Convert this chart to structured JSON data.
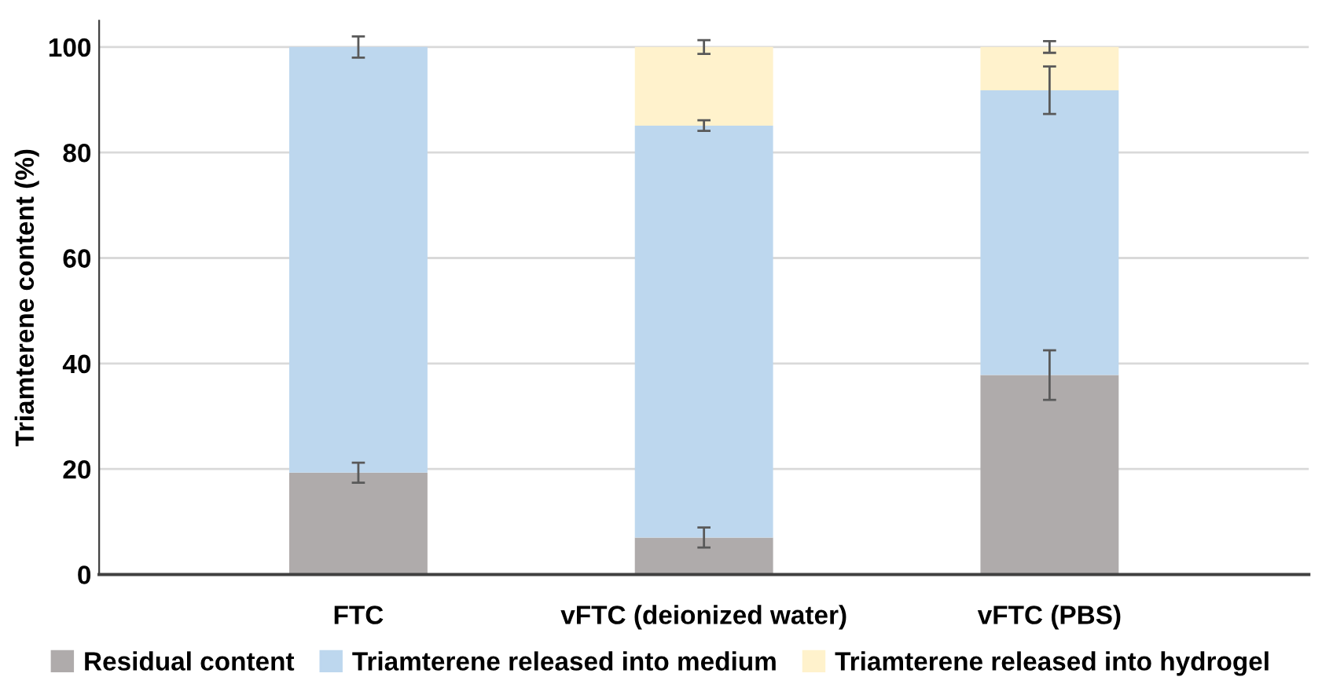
{
  "chart_data": {
    "type": "bar",
    "stacked": true,
    "ylabel": "Triamterene content (%)",
    "categories": [
      "FTC",
      "vFTC (deionized water)",
      "vFTC (PBS)"
    ],
    "series": [
      {
        "name": "Residual content",
        "color": "#afabab",
        "values": [
          19.3,
          7.0,
          37.8
        ],
        "errors": [
          1.9,
          1.9,
          4.7
        ]
      },
      {
        "name": "Triamterene released into medium",
        "color": "#bdd7ee",
        "values": [
          80.7,
          78.1,
          54.0
        ],
        "errors": [
          2.0,
          1.0,
          4.5
        ]
      },
      {
        "name": "Triamterene released into hydrogel",
        "color": "#fff2cc",
        "values": [
          0,
          14.9,
          8.2
        ],
        "errors": [
          null,
          1.3,
          1.1
        ]
      }
    ],
    "ylim": [
      0,
      105
    ],
    "yticks": [
      0,
      20,
      40,
      60,
      80,
      100
    ],
    "grid": "y",
    "legend": "bottom"
  }
}
